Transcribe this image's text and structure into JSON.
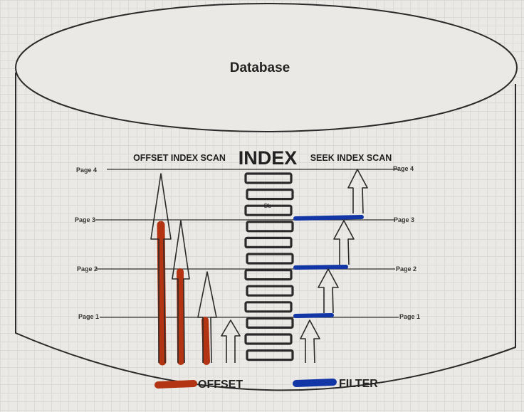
{
  "database": {
    "title": "Database"
  },
  "index": {
    "title": "INDEX",
    "entry_text": "Db",
    "left_heading": "OFFSET INDEX SCAN",
    "right_heading": "SEEK INDEX SCAN"
  },
  "pages": {
    "left": [
      "Page 4",
      "Page 3",
      "Page 2",
      "Page 1"
    ],
    "right": [
      "Page 4",
      "Page 3",
      "Page 2",
      "Page 1"
    ]
  },
  "legend": {
    "offset_label": "OFFSET",
    "filter_label": "FILTER"
  },
  "colors": {
    "offset": "#b23412",
    "filter": "#1336a6",
    "outline": "#2a2a2a"
  }
}
